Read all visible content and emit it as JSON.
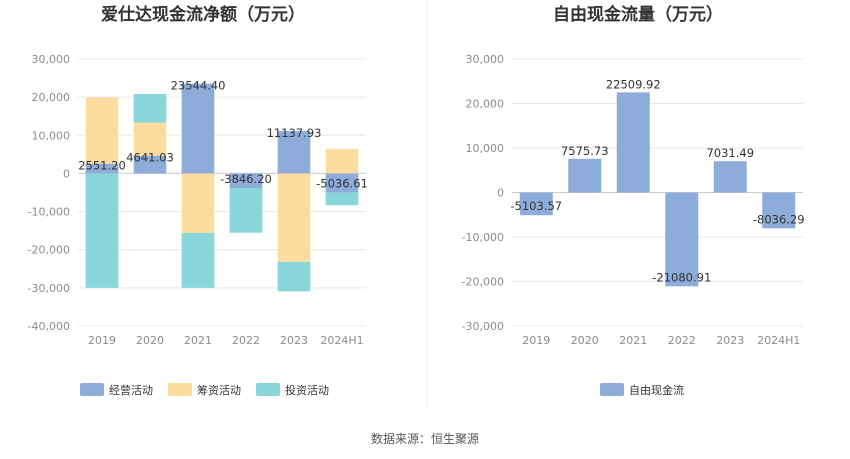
{
  "source_text": "数据来源：恒生聚源",
  "colors": {
    "operating": "#8eacd9",
    "financing": "#fcdc9f",
    "investing": "#88d6da",
    "free_cash_flow": "#8eacd9",
    "grid": "#e8e8e8",
    "axis_text": "#8c8c8c"
  },
  "chart_data": [
    {
      "type": "bar",
      "stacked": true,
      "title": "爱仕达现金流净额（万元）",
      "categories": [
        "2019",
        "2020",
        "2021",
        "2022",
        "2023",
        "2024H1"
      ],
      "ylim": [
        -40000,
        30000
      ],
      "yticks": [
        30000,
        20000,
        10000,
        0,
        -10000,
        -20000,
        -30000,
        -40000
      ],
      "ytick_labels": [
        "30,000",
        "20,000",
        "10,000",
        "0",
        "-10,000",
        "-20,000",
        "-30,000",
        "-40,000"
      ],
      "grid": true,
      "legend_position": "bottom",
      "series": [
        {
          "name": "经营活动",
          "key": "operating",
          "values": [
            2551.2,
            4641.03,
            23544.4,
            -3846.2,
            11137.93,
            -5036.61
          ]
        },
        {
          "name": "筹资活动",
          "key": "financing",
          "values": [
            17400,
            8700,
            -15600,
            0,
            -23200,
            6400
          ]
        },
        {
          "name": "投资活动",
          "key": "investing",
          "values": [
            -30000,
            7500,
            -14400,
            -11700,
            -7700,
            -3300
          ]
        }
      ],
      "data_labels": [
        "2551.20",
        "4641.03",
        "23544.40",
        "-3846.20",
        "11137.93",
        "-5036.61"
      ]
    },
    {
      "type": "bar",
      "title": "自由现金流量（万元）",
      "categories": [
        "2019",
        "2020",
        "2021",
        "2022",
        "2023",
        "2024H1"
      ],
      "ylim": [
        -30000,
        30000
      ],
      "yticks": [
        30000,
        20000,
        10000,
        0,
        -10000,
        -20000,
        -30000
      ],
      "ytick_labels": [
        "30,000",
        "20,000",
        "10,000",
        "0",
        "-10,000",
        "-20,000",
        "-30,000"
      ],
      "grid": true,
      "legend_position": "bottom",
      "series": [
        {
          "name": "自由现金流",
          "key": "free_cash_flow",
          "values": [
            -5103.57,
            7575.73,
            22509.92,
            -21080.91,
            7031.49,
            -8036.29
          ]
        }
      ],
      "data_labels": [
        "-5103.57",
        "7575.73",
        "22509.92",
        "-21080.91",
        "7031.49",
        "-8036.29"
      ]
    }
  ]
}
